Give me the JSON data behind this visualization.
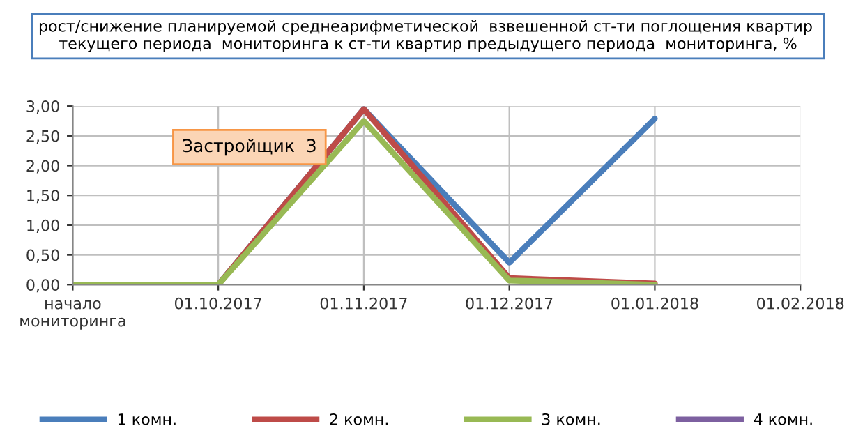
{
  "chart_data": {
    "type": "line",
    "title": "рост/снижение планируемой среднеарифметической  взвешенной ст-ти поглощения квартир  текущего периода  мониторинга к ст-ти квартир предыдущего периода  мониторинга, %",
    "categories": [
      "начало\nмониторинга",
      "01.10.2017",
      "01.11.2017",
      "01.12.2017",
      "01.01.2018",
      "01.02.2018"
    ],
    "series": [
      {
        "name": "1 комн.",
        "color": "#4a7ebb",
        "values": [
          0,
          0,
          2.95,
          0.37,
          2.79,
          null
        ]
      },
      {
        "name": "2 комн.",
        "color": "#be4b48",
        "values": [
          0,
          0,
          2.95,
          0.11,
          0.02,
          null
        ]
      },
      {
        "name": "3 комн.",
        "color": "#98b954",
        "values": [
          0,
          0,
          2.75,
          0.07,
          0,
          null
        ]
      },
      {
        "name": "4 комн.",
        "color": "#7d60a0",
        "values": [
          null,
          null,
          null,
          null,
          null,
          null
        ]
      }
    ],
    "ylim": [
      0,
      3
    ],
    "yticks": [
      {
        "value": 0,
        "label": "0,00"
      },
      {
        "value": 0.5,
        "label": "0,50"
      },
      {
        "value": 1,
        "label": "1,00"
      },
      {
        "value": 1.5,
        "label": "1,50"
      },
      {
        "value": 2,
        "label": "2,00"
      },
      {
        "value": 2.5,
        "label": "2,50"
      },
      {
        "value": 3,
        "label": "3,00"
      }
    ],
    "annotations": [
      "Застройщик  3"
    ],
    "grid": true,
    "legend": "bottom",
    "marker": "none",
    "line_style": "solid"
  }
}
